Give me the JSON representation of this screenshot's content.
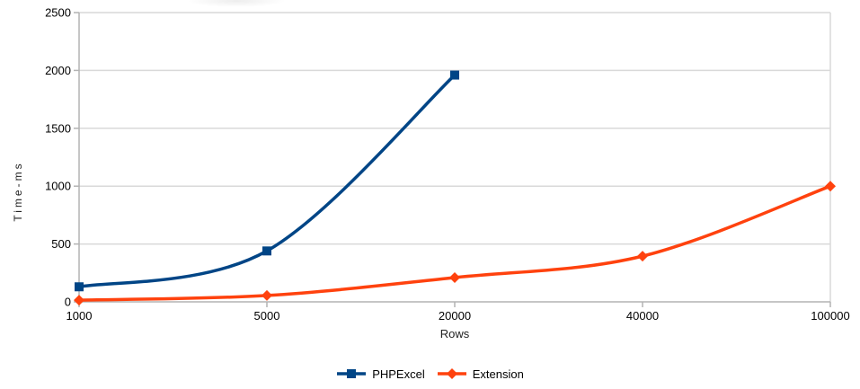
{
  "chart_data": {
    "type": "line",
    "title": "",
    "xlabel": "Rows",
    "ylabel": "Time-ms",
    "categories": [
      "1000",
      "5000",
      "20000",
      "40000",
      "100000"
    ],
    "y_ticks": [
      0,
      500,
      1000,
      1500,
      2000,
      2500
    ],
    "ylim": [
      0,
      2500
    ],
    "grid": "horizontal",
    "smooth_lines": true,
    "legend_position": "bottom-center",
    "series": [
      {
        "name": "PHPExcel",
        "color": "#004586",
        "marker": "square",
        "values": [
          130,
          440,
          1960,
          null,
          null
        ]
      },
      {
        "name": "Extension",
        "color": "#FF420E",
        "marker": "diamond",
        "values": [
          15,
          55,
          210,
          395,
          1000
        ]
      }
    ],
    "style": {
      "grid_color": "#d9d9d9",
      "axis_color": "#b3b3b3",
      "text_color": "#000000",
      "line_width": 3.5
    }
  }
}
